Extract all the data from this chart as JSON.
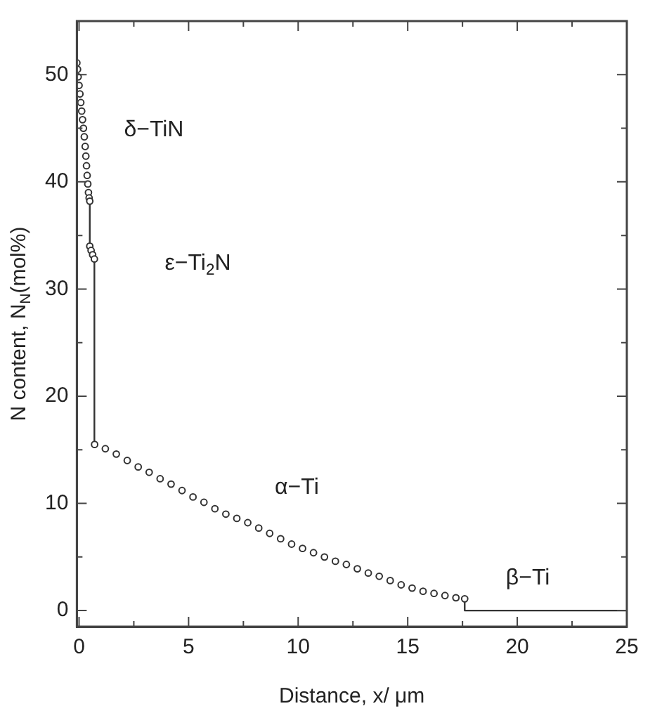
{
  "chart_data": {
    "type": "scatter",
    "xlabel": "Distance, x/ μm",
    "ylabel": "N content, N$_{N}$(mol%)",
    "xlim": [
      -0.1,
      25
    ],
    "ylim": [
      -1.5,
      55
    ],
    "xticks": [
      0,
      {
        "value": 2.5,
        "label": null
      },
      5,
      {
        "value": 7.5,
        "label": null
      },
      10,
      {
        "value": 12.5,
        "label": null
      },
      15,
      {
        "value": 17.5,
        "label": null
      },
      20,
      {
        "value": 22.5,
        "label": null
      },
      25
    ],
    "yticks": [
      0,
      {
        "value": 5,
        "label": null
      },
      10,
      {
        "value": 15,
        "label": null
      },
      20,
      {
        "value": 25,
        "label": null
      },
      30,
      {
        "value": 35,
        "label": null
      },
      40,
      {
        "value": 45,
        "label": null
      },
      50
    ],
    "grid": false,
    "legend": false,
    "marker": "circle",
    "series": [
      {
        "color": "#333333",
        "x": [
          -0.1,
          -0.07,
          -0.04,
          0,
          0.04,
          0.08,
          0.12,
          0.16,
          0.2,
          0.24,
          0.28,
          0.31,
          0.34,
          0.37,
          0.4,
          0.43,
          0.46,
          0.49
        ],
        "values": [
          51.1,
          50.5,
          49.8,
          49,
          48.2,
          47.4,
          46.6,
          45.8,
          45,
          44.2,
          43.3,
          42.4,
          41.5,
          40.6,
          39.8,
          39,
          38.5,
          38.2
        ]
      },
      {
        "color": "#333333",
        "x": [
          0.49,
          0.55,
          0.62,
          0.7
        ],
        "values": [
          34.0,
          33.6,
          33.2,
          32.8
        ]
      },
      {
        "color": "#333333",
        "x": [
          0.71,
          1.2,
          1.7,
          2.2,
          2.7,
          3.2,
          3.7,
          4.2,
          4.7,
          5.2,
          5.7,
          6.2,
          6.7,
          7.2,
          7.7,
          8.2,
          8.7,
          9.2,
          9.7,
          10.2,
          10.7,
          11.2,
          11.7,
          12.2,
          12.7,
          13.2,
          13.7,
          14.2,
          14.7,
          15.2,
          15.7,
          16.2,
          16.7,
          17.2,
          17.6
        ],
        "values": [
          15.5,
          15.1,
          14.6,
          14.0,
          13.4,
          12.9,
          12.3,
          11.8,
          11.2,
          10.6,
          10.1,
          9.5,
          9.0,
          8.6,
          8.2,
          7.7,
          7.2,
          6.7,
          6.2,
          5.8,
          5.4,
          5.0,
          4.6,
          4.3,
          3.9,
          3.5,
          3.2,
          2.8,
          2.4,
          2.1,
          1.8,
          1.6,
          1.4,
          1.2,
          1.1
        ]
      },
      {
        "type": "line",
        "color": "#333333",
        "marker": "none",
        "x": [
          0.49,
          0.49,
          0.6,
          0.7,
          0.7,
          10,
          17.6,
          17.6,
          25
        ],
        "values": [
          38.2,
          34.0,
          null,
          32.8,
          15.5,
          null,
          1.1,
          0,
          0
        ]
      }
    ],
    "annotations": [
      "δ−TiN",
      "ε−Ti$_{2}$N",
      "α−Ti",
      "β−Ti"
    ]
  }
}
